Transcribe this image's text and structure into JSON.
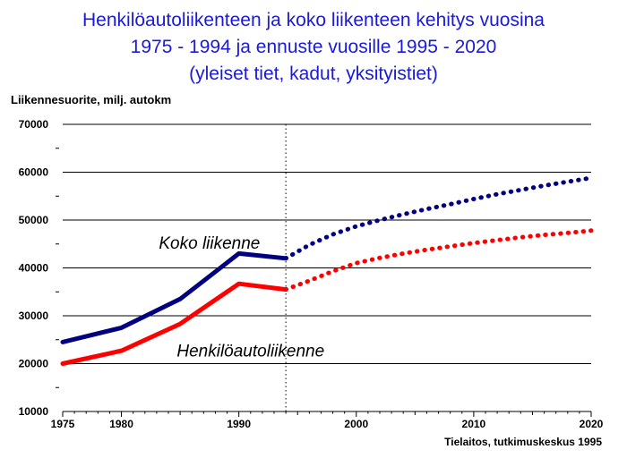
{
  "chart_data": {
    "type": "line",
    "title_lines": [
      "Henkilöautoliikenteen ja koko liikenteen kehitys vuosina",
      "1975 - 1994 ja ennuste vuosille 1995 - 2020",
      "(yleiset tiet, kadut, yksityistiet)"
    ],
    "ylabel": "Liikennesuorite, milj. autokm",
    "xlabel": "",
    "source": "Tielaitos, tutkimuskeskus 1995",
    "ylim": [
      10000,
      70000
    ],
    "xlim": [
      1975,
      2020
    ],
    "y_ticks": [
      {
        "value": 10000,
        "label": "10000"
      },
      {
        "value": 20000,
        "label": "20000"
      },
      {
        "value": 30000,
        "label": "30000"
      },
      {
        "value": 40000,
        "label": "40000"
      },
      {
        "value": 50000,
        "label": "50000"
      },
      {
        "value": 60000,
        "label": "60000"
      },
      {
        "value": 70000,
        "label": "70000"
      }
    ],
    "y_minor_ticks": [
      15000,
      25000,
      35000,
      45000,
      55000,
      65000
    ],
    "x_ticks": [
      {
        "value": 1975,
        "label": "1975"
      },
      {
        "value": 1980,
        "label": "1980"
      },
      {
        "value": 1990,
        "label": "1990"
      },
      {
        "value": 2000,
        "label": "2000"
      },
      {
        "value": 2010,
        "label": "2010"
      },
      {
        "value": 2020,
        "label": "2020"
      }
    ],
    "grid": "horizontal",
    "forecast_start": 1994,
    "series": [
      {
        "name": "Koko liikenne",
        "color": "#000080",
        "label_at": [
          1987.5,
          44000
        ],
        "actual": {
          "x": [
            1975,
            1980,
            1985,
            1990,
            1994
          ],
          "y": [
            24500,
            27500,
            33500,
            43000,
            42000
          ]
        },
        "forecast": {
          "x": [
            1994,
            1996,
            1998,
            2000,
            2002,
            2004,
            2006,
            2008,
            2010,
            2012,
            2014,
            2016,
            2018,
            2020
          ],
          "y": [
            42000,
            44800,
            47000,
            48700,
            50000,
            51200,
            52300,
            53300,
            54400,
            55400,
            56300,
            57200,
            58000,
            58800
          ]
        }
      },
      {
        "name": "Henkilöautoliikenne",
        "color": "#ff0000",
        "label_at": [
          1991,
          21500
        ],
        "actual": {
          "x": [
            1975,
            1980,
            1985,
            1990,
            1994
          ],
          "y": [
            20000,
            22700,
            28300,
            36700,
            35500
          ]
        },
        "forecast": {
          "x": [
            1994,
            1996,
            1998,
            2000,
            2002,
            2004,
            2006,
            2008,
            2010,
            2012,
            2014,
            2016,
            2018,
            2020
          ],
          "y": [
            35500,
            37300,
            39300,
            41000,
            42100,
            43000,
            43800,
            44500,
            45200,
            45800,
            46400,
            46900,
            47300,
            47800
          ]
        }
      }
    ]
  }
}
